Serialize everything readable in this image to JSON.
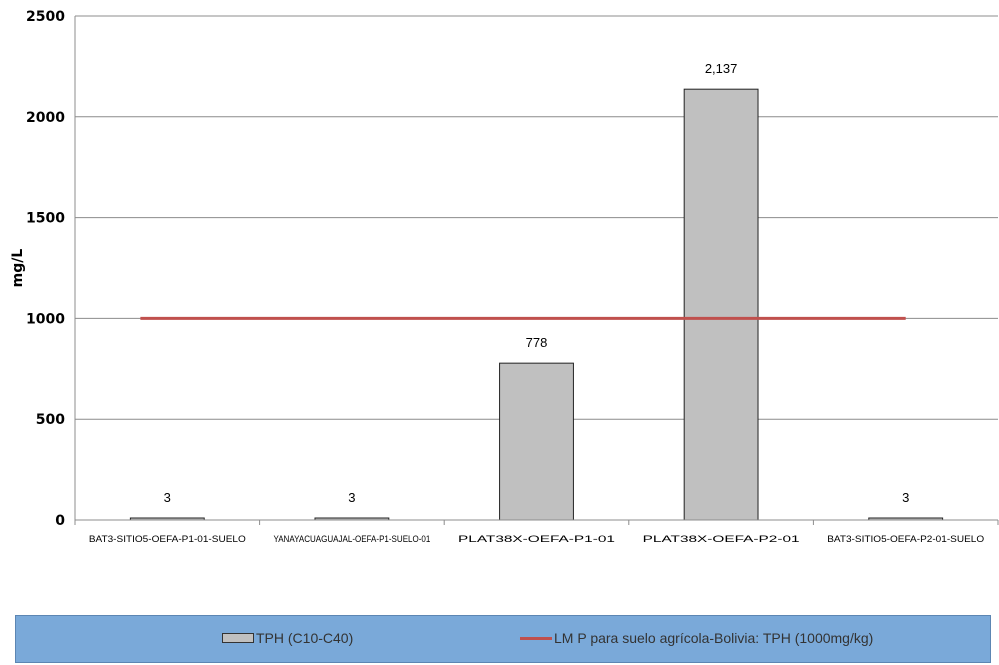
{
  "chart_data": {
    "type": "bar",
    "categories": [
      "BAT3-SITIO5-OEFA-P1-01-SUELO",
      "YANAYACUAGUAJAL-OEFA-P1-SUELO-01",
      "PLAT38X-OEFA-P1-01",
      "PLAT38X-OEFA-P2-01",
      "BAT3-SITIO5-OEFA-P2-01-SUELO"
    ],
    "series": [
      {
        "name": "TPH (C10-C40)",
        "values": [
          3,
          3,
          778,
          2137,
          3
        ],
        "labels": [
          "3",
          "3",
          "778",
          "2,137",
          "3"
        ],
        "color": "#c0c0c0"
      }
    ],
    "reference_line": {
      "name": "LM P para suelo agrícola-Bolivia: TPH (1000mg/kg)",
      "value": 1000,
      "color": "#c0504d"
    },
    "ylabel": "mg/L",
    "ylim": [
      0,
      2500
    ],
    "yticks": [
      "0",
      "500",
      "1000",
      "1500",
      "2000",
      "2500"
    ],
    "grid": true,
    "legend_position": "bottom"
  }
}
